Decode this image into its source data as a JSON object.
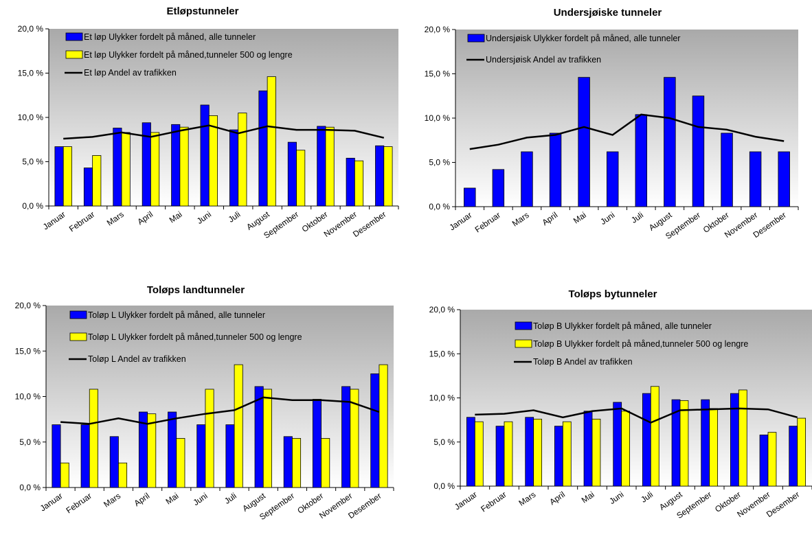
{
  "chart_data": [
    {
      "type": "bar",
      "title": "Etløpstunneler",
      "categories": [
        "Januar",
        "Februar",
        "Mars",
        "April",
        "Mai",
        "Juni",
        "Juli",
        "August",
        "September",
        "Oktober",
        "November",
        "Desember"
      ],
      "ylim": [
        0,
        20
      ],
      "yticks": [
        "0,0 %",
        "5,0 %",
        "10,0 %",
        "15,0 %",
        "20,0 %"
      ],
      "series": [
        {
          "name": "Et løp Ulykker fordelt på måned, alle tunneler",
          "kind": "bar",
          "color": "#0000ff",
          "values": [
            6.7,
            4.3,
            8.8,
            9.4,
            9.2,
            11.4,
            8.6,
            13.0,
            7.2,
            9.0,
            5.4,
            6.8
          ]
        },
        {
          "name": "Et løp Ulykker fordelt på måned,tunneler 500 og lengre",
          "kind": "bar",
          "color": "#ffff00",
          "values": [
            6.7,
            5.7,
            8.3,
            8.3,
            8.9,
            10.2,
            10.5,
            14.6,
            6.3,
            8.9,
            5.1,
            6.7
          ]
        },
        {
          "name": "Et løp Andel av trafikken",
          "kind": "line",
          "color": "#000000",
          "values": [
            7.6,
            7.8,
            8.3,
            7.8,
            8.5,
            9.1,
            8.2,
            9.0,
            8.6,
            8.6,
            8.5,
            7.7
          ]
        }
      ],
      "grid": false,
      "legend": "top-left inside"
    },
    {
      "type": "bar",
      "title": "Undersjøiske tunneler",
      "categories": [
        "Januar",
        "Februar",
        "Mars",
        "April",
        "Mai",
        "Juni",
        "Juli",
        "August",
        "September",
        "Oktober",
        "November",
        "Desember"
      ],
      "ylim": [
        0,
        20
      ],
      "yticks": [
        "0,0 %",
        "5,0 %",
        "10,0 %",
        "15,0 %",
        "20,0 %"
      ],
      "series": [
        {
          "name": "Undersjøisk Ulykker fordelt på måned, alle tunneler",
          "kind": "bar",
          "color": "#0000ff",
          "values": [
            2.1,
            4.2,
            6.2,
            8.3,
            14.6,
            6.2,
            10.4,
            14.6,
            12.5,
            8.3,
            6.2,
            6.2
          ]
        },
        {
          "name": "Undersjøisk Andel av trafikken",
          "kind": "line",
          "color": "#000000",
          "values": [
            6.5,
            7.0,
            7.8,
            8.1,
            9.0,
            8.1,
            10.4,
            10.0,
            9.0,
            8.7,
            7.9,
            7.4
          ]
        }
      ],
      "grid": false,
      "legend": "top-left inside"
    },
    {
      "type": "bar",
      "title": "Toløps landtunneler",
      "categories": [
        "Januar",
        "Februar",
        "Mars",
        "April",
        "Mai",
        "Juni",
        "Juli",
        "August",
        "September",
        "Oktober",
        "November",
        "Desember"
      ],
      "ylim": [
        0,
        20
      ],
      "yticks": [
        "0,0 %",
        "5,0 %",
        "10,0 %",
        "15,0 %",
        "20,0 %"
      ],
      "series": [
        {
          "name": "Toløp L Ulykker fordelt på måned, alle tunneler",
          "kind": "bar",
          "color": "#0000ff",
          "values": [
            6.9,
            6.9,
            5.6,
            8.3,
            8.3,
            6.9,
            6.9,
            11.1,
            5.6,
            9.7,
            11.1,
            12.5
          ]
        },
        {
          "name": "Toløp L Ulykker fordelt på måned,tunneler 500 og lengre",
          "kind": "bar",
          "color": "#ffff00",
          "values": [
            2.7,
            10.8,
            2.7,
            8.1,
            5.4,
            10.8,
            13.5,
            10.8,
            5.4,
            5.4,
            10.8,
            13.5
          ]
        },
        {
          "name": "Toløp L Andel av trafikken",
          "kind": "line",
          "color": "#000000",
          "values": [
            7.2,
            7.0,
            7.6,
            7.0,
            7.6,
            8.1,
            8.5,
            9.9,
            9.6,
            9.6,
            9.4,
            8.3
          ]
        }
      ],
      "grid": false,
      "legend": "top-left inside"
    },
    {
      "type": "bar",
      "title": "Toløps bytunneler",
      "categories": [
        "Januar",
        "Februar",
        "Mars",
        "April",
        "Mai",
        "Juni",
        "Juli",
        "August",
        "September",
        "Oktober",
        "November",
        "Desember"
      ],
      "ylim": [
        0,
        20
      ],
      "yticks": [
        "0,0 %",
        "5,0 %",
        "10,0 %",
        "15,0 %",
        "20,0 %"
      ],
      "series": [
        {
          "name": "Toløp B Ulykker fordelt på måned, alle tunneler",
          "kind": "bar",
          "color": "#0000ff",
          "values": [
            7.8,
            6.8,
            7.8,
            6.8,
            8.5,
            9.5,
            10.5,
            9.8,
            9.8,
            10.5,
            5.8,
            6.8
          ]
        },
        {
          "name": "Toløp B Ulykker fordelt på måned,tunneler 500 og lengre",
          "kind": "bar",
          "color": "#ffff00",
          "values": [
            7.3,
            7.3,
            7.6,
            7.3,
            7.6,
            8.5,
            11.3,
            9.7,
            8.8,
            10.9,
            6.1,
            7.7
          ]
        },
        {
          "name": "Toløp B Andel av trafikken",
          "kind": "line",
          "color": "#000000",
          "values": [
            8.1,
            8.2,
            8.6,
            7.8,
            8.5,
            8.8,
            7.2,
            8.6,
            8.7,
            8.8,
            8.7,
            7.8
          ]
        }
      ],
      "grid": false,
      "legend": "top-left inside"
    }
  ]
}
